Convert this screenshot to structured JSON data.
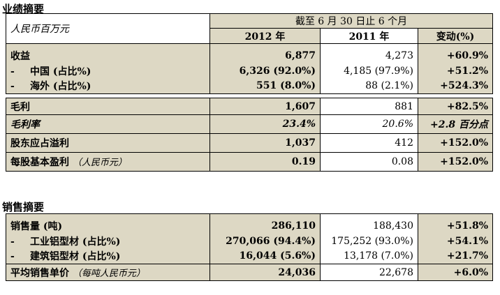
{
  "summary": {
    "title": "业绩摘要",
    "unit_label": "人民币百万元",
    "period_header": "截至 6 月 30 日止 6 个月",
    "col_2012": "2012 年",
    "col_2011": "2011 年",
    "col_change": "变动(%)",
    "rows": [
      {
        "label": "收益",
        "prefix": "",
        "v2012": "6,877",
        "v2011": "4,273",
        "change": "+60.9%"
      },
      {
        "label": "中国 (占比%)",
        "prefix": "-",
        "v2012": "6,326 (92.0%)",
        "v2011": "4,185 (97.9%)",
        "change": "+51.2%"
      },
      {
        "label": "海外 (占比%)",
        "prefix": "-",
        "v2012": "551 (8.0%)",
        "v2011": "88 (2.1%)",
        "change": "+524.3%"
      },
      {
        "label": "毛利",
        "prefix": "",
        "v2012": "1,607",
        "v2011": "881",
        "change": "+82.5%"
      },
      {
        "label": "毛利率",
        "prefix": "",
        "v2012": "23.4%",
        "v2011": "20.6%",
        "change": "+2.8 百分点"
      },
      {
        "label": "股东应占溢利",
        "prefix": "",
        "v2012": "1,037",
        "v2011": "412",
        "change": "+152.0%"
      },
      {
        "label": "每股基本盈利",
        "note": "（人民币元）",
        "prefix": "",
        "v2012": "0.19",
        "v2011": "0.08",
        "change": "+152.0%"
      }
    ]
  },
  "sales": {
    "title": "销售摘要",
    "rows": [
      {
        "label": "销售量 (吨)",
        "prefix": "",
        "v2012": "286,110",
        "v2011": "188,430",
        "change": "+51.8%"
      },
      {
        "label": "工业铝型材 (占比%)",
        "prefix": "-",
        "v2012": "270,066 (94.4%)",
        "v2011": "175,252 (93.0%)",
        "change": "+54.1%"
      },
      {
        "label": "建筑铝型材 (占比%)",
        "prefix": "-",
        "v2012": "16,044 (5.6%)",
        "v2011": "13,178 (7.0%)",
        "change": "+21.7%"
      },
      {
        "label": "平均销售单价",
        "note": "（每吨人民币元）",
        "prefix": "",
        "v2012": "24,036",
        "v2011": "22,678",
        "change": "+6.0%"
      }
    ]
  }
}
